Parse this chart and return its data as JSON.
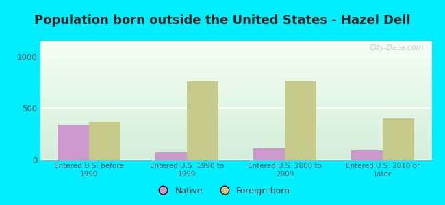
{
  "title": "Population born outside the United States - Hazel Dell",
  "categories": [
    "Entered U.S. before\n1990",
    "Entered U.S. 1990 to\n1999",
    "Entered U.S. 2000 to\n2009",
    "Entered U.S. 2010 or\nlater"
  ],
  "native_values": [
    340,
    70,
    115,
    90
  ],
  "foreign_values": [
    370,
    760,
    760,
    400
  ],
  "native_color": "#cc99cc",
  "foreign_color": "#c5c98a",
  "background_outer": "#00eeff",
  "ylim": [
    0,
    1150
  ],
  "yticks": [
    0,
    500,
    1000
  ],
  "bar_width": 0.32,
  "title_fontsize": 13,
  "tick_color": "#555555",
  "legend_native": "Native",
  "legend_foreign": "Foreign-born",
  "watermark": "City-Data.com"
}
